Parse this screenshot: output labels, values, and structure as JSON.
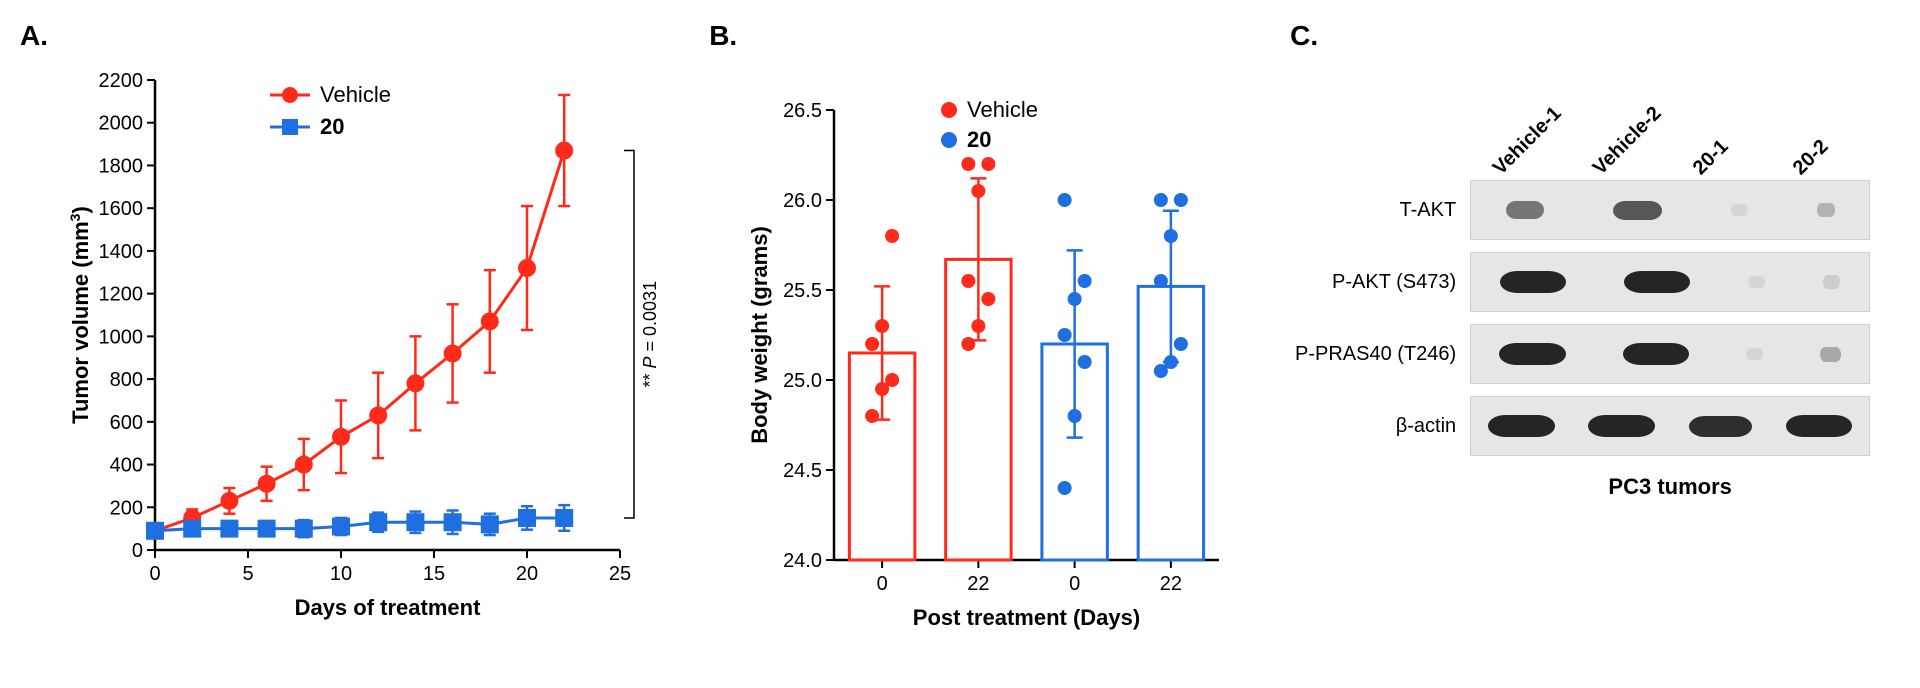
{
  "panelA": {
    "label": "A.",
    "type": "line-scatter-errorbar",
    "title": null,
    "xlabel": "Days of treatment",
    "ylabel": "Tumor volume (mm³)",
    "xlabel_fontsize": 22,
    "ylabel_fontsize": 22,
    "tick_fontsize": 20,
    "xlim": [
      0,
      25
    ],
    "ylim": [
      0,
      2200
    ],
    "xticks": [
      0,
      5,
      10,
      15,
      20,
      25
    ],
    "yticks": [
      0,
      200,
      400,
      600,
      800,
      1000,
      1200,
      1400,
      1600,
      1800,
      2000,
      2200
    ],
    "axis_color": "#000000",
    "axis_width": 2.5,
    "background_color": "#ffffff",
    "legend": {
      "pos": "top-center",
      "fontsize": 22,
      "items": [
        {
          "label": "Vehicle",
          "color": "#ff2a1a",
          "marker": "circle"
        },
        {
          "label": "20",
          "color": "#1f6fe0",
          "marker": "square",
          "bold": true
        }
      ]
    },
    "annotation": {
      "text": "** P = 0.0031",
      "fontsize": 18,
      "rotate": -90
    },
    "series": [
      {
        "name": "Vehicle",
        "color": "#ff2a1a",
        "marker": "circle",
        "marker_size": 9,
        "line_width": 3,
        "x": [
          0,
          2,
          4,
          6,
          8,
          10,
          12,
          14,
          16,
          18,
          20,
          22
        ],
        "y": [
          90,
          150,
          230,
          310,
          400,
          530,
          630,
          780,
          920,
          1070,
          1320,
          1870
        ],
        "yerr": [
          25,
          40,
          60,
          80,
          120,
          170,
          200,
          220,
          230,
          240,
          290,
          260
        ]
      },
      {
        "name": "20",
        "color": "#1f6fe0",
        "marker": "square",
        "marker_size": 9,
        "line_width": 3,
        "x": [
          0,
          2,
          4,
          6,
          8,
          10,
          12,
          14,
          16,
          18,
          20,
          22
        ],
        "y": [
          90,
          100,
          100,
          100,
          100,
          110,
          130,
          130,
          130,
          120,
          150,
          150
        ],
        "yerr": [
          25,
          30,
          35,
          35,
          40,
          40,
          45,
          50,
          55,
          50,
          55,
          60
        ]
      }
    ]
  },
  "panelB": {
    "label": "B.",
    "type": "bar-scatter-errorbar",
    "xlabel": "Post treatment (Days)",
    "ylabel": "Body weight (grams)",
    "xlabel_fontsize": 22,
    "ylabel_fontsize": 22,
    "tick_fontsize": 20,
    "ylim": [
      24.0,
      26.5
    ],
    "yticks": [
      24.0,
      24.5,
      25.0,
      25.5,
      26.0,
      26.5
    ],
    "xticklabels": [
      "0",
      "22",
      "0",
      "22"
    ],
    "axis_color": "#000000",
    "axis_width": 2.5,
    "bar_width": 0.68,
    "legend": {
      "pos": "top-center",
      "fontsize": 22,
      "items": [
        {
          "label": "Vehicle",
          "color": "#ff2a1a",
          "marker": "circle"
        },
        {
          "label": "20",
          "color": "#1f6fe0",
          "marker": "circle",
          "bold": true
        }
      ]
    },
    "bars": [
      {
        "group": "Vehicle",
        "x": 0,
        "mean": 25.15,
        "err": 0.37,
        "color": "#ff2a1a",
        "points": [
          24.8,
          24.95,
          25.0,
          25.2,
          25.3,
          25.8
        ]
      },
      {
        "group": "Vehicle",
        "x": 22,
        "mean": 25.67,
        "err": 0.45,
        "color": "#ff2a1a",
        "points": [
          25.2,
          25.3,
          25.45,
          25.55,
          26.05,
          26.2,
          26.2
        ]
      },
      {
        "group": "20",
        "x": 0,
        "mean": 25.2,
        "err": 0.52,
        "color": "#1f6fe0",
        "points": [
          24.4,
          24.8,
          25.1,
          25.25,
          25.45,
          25.55,
          26.0
        ]
      },
      {
        "group": "20",
        "x": 22,
        "mean": 25.52,
        "err": 0.42,
        "color": "#1f6fe0",
        "points": [
          25.05,
          25.1,
          25.2,
          25.55,
          25.8,
          26.0,
          26.0
        ]
      }
    ]
  },
  "panelC": {
    "label": "C.",
    "type": "western-blot",
    "xlabel": "PC3 tumors",
    "lanes": [
      "Vehicle-1",
      "Vehicle-2",
      "20-1",
      "20-2"
    ],
    "lane_fontsize": 20,
    "label_fontsize": 20,
    "strip_bg": "#e6e6e6",
    "band_color": "#1a1a1a",
    "rows": [
      {
        "label": "T-AKT",
        "intensity": [
          0.55,
          0.7,
          0.02,
          0.25
        ]
      },
      {
        "label": "P-AKT (S473)",
        "intensity": [
          0.95,
          0.95,
          0.02,
          0.12
        ]
      },
      {
        "label": "P-PRAS40 (T246)",
        "intensity": [
          0.95,
          0.95,
          0.02,
          0.3
        ]
      },
      {
        "label": "β-actin",
        "intensity": [
          0.95,
          0.95,
          0.9,
          0.95
        ]
      }
    ]
  }
}
